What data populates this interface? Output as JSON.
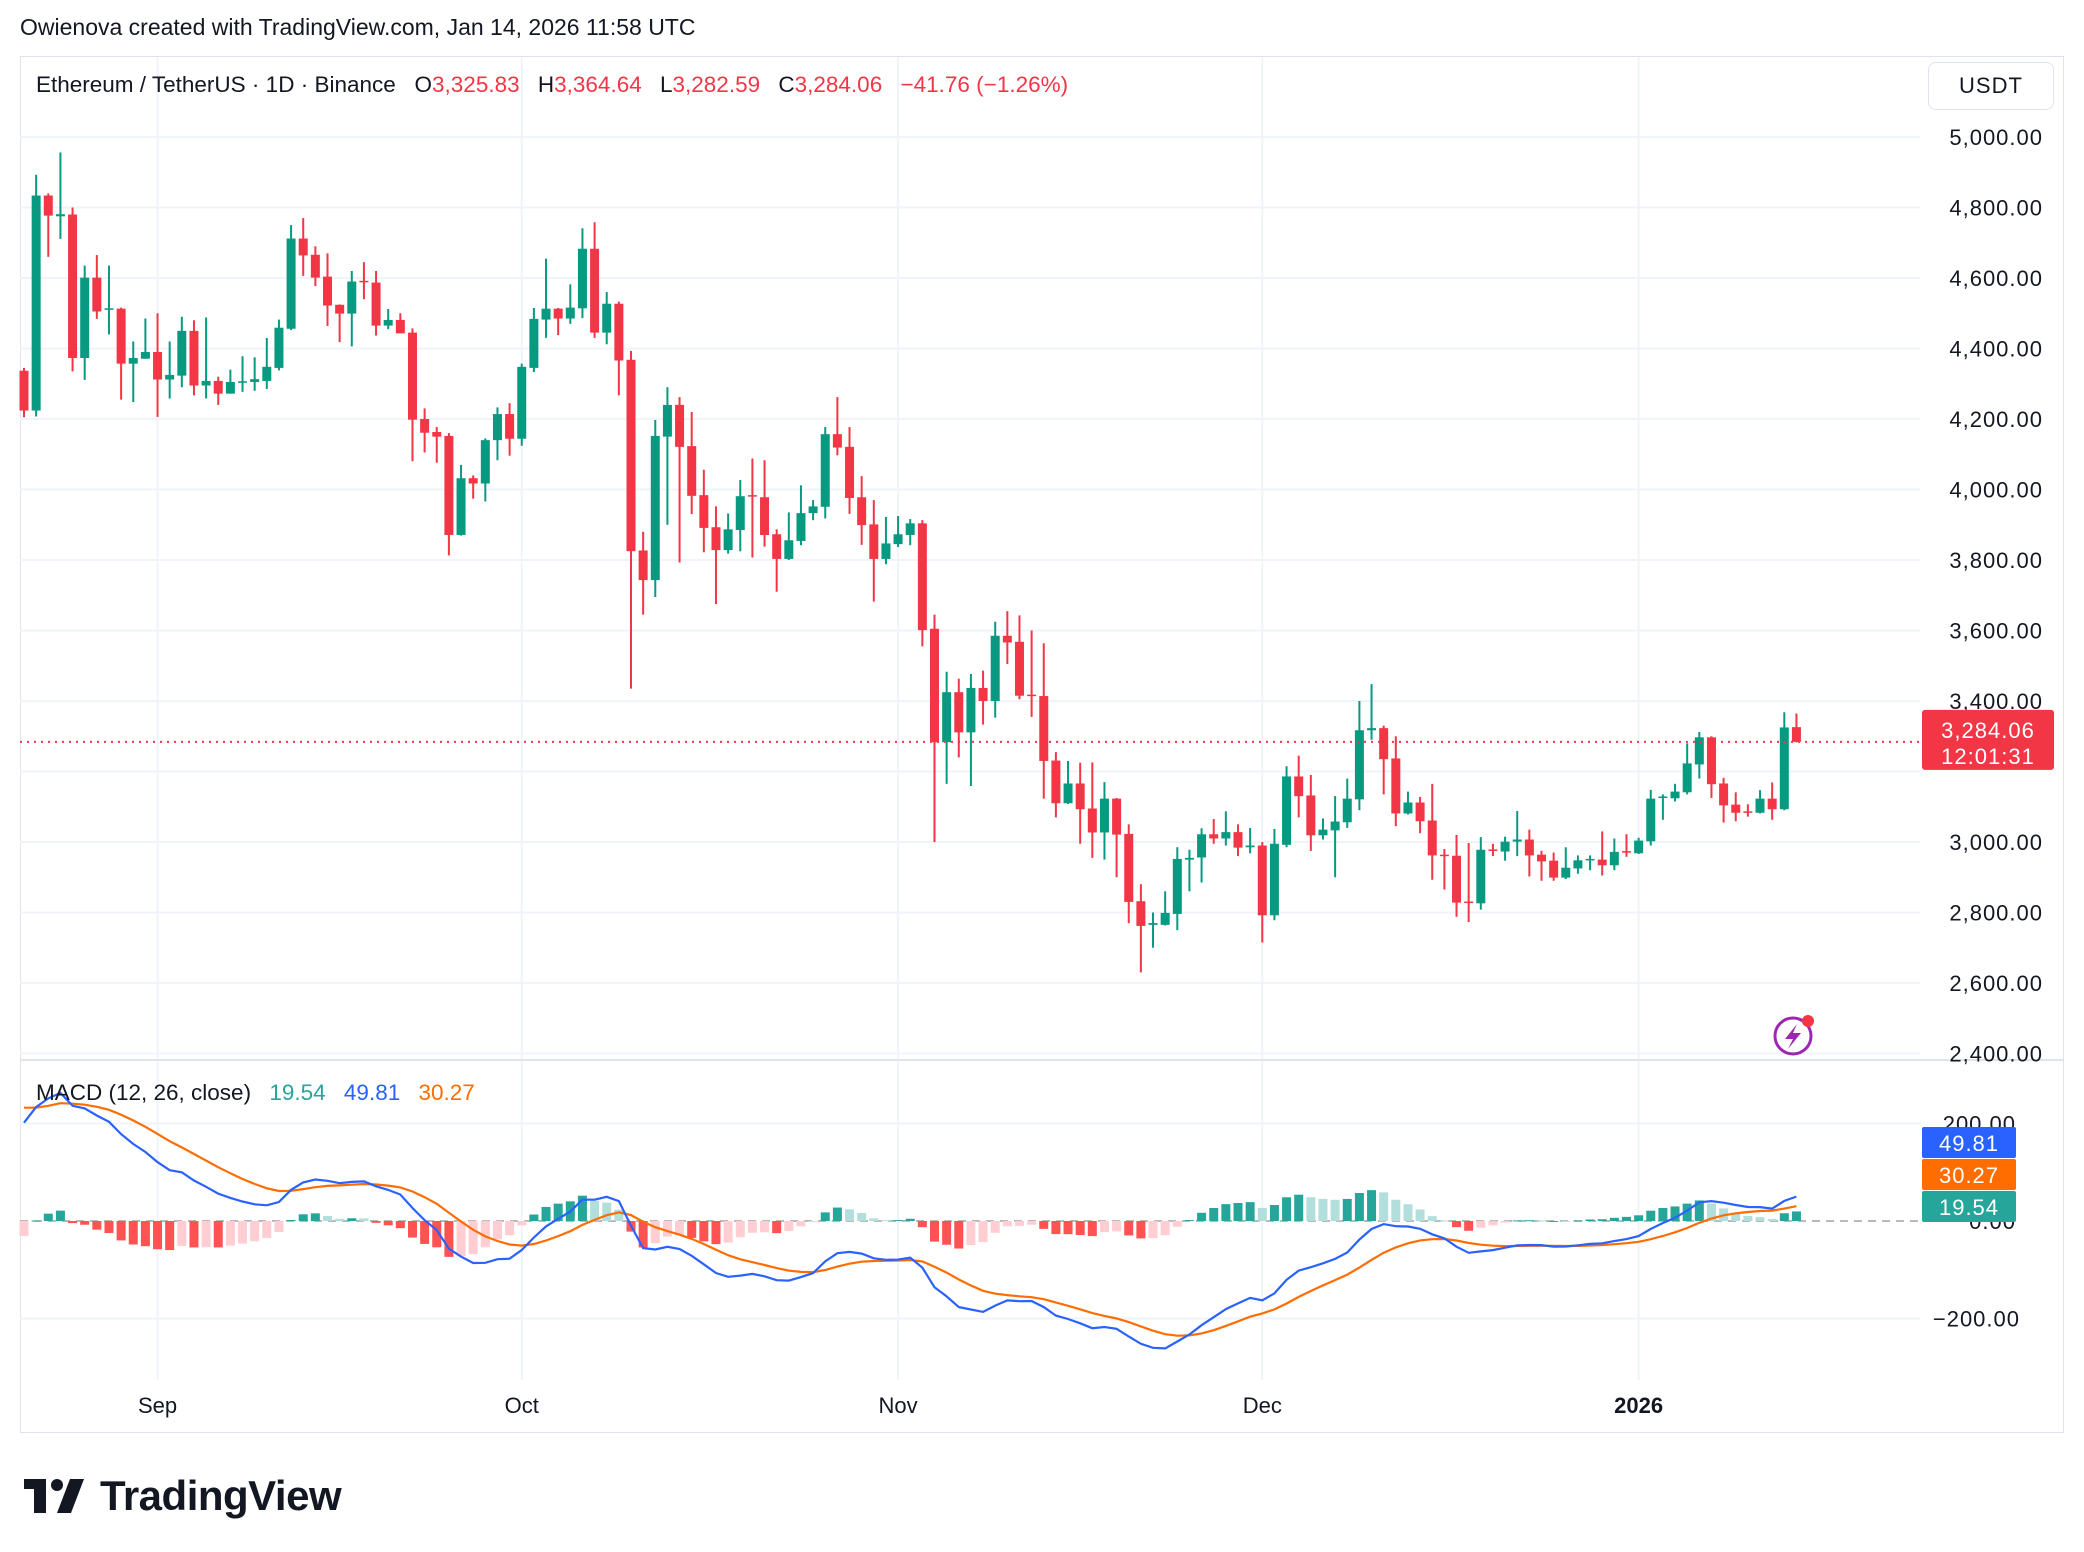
{
  "header": {
    "attribution": "Owienova created with TradingView.com, Jan 14, 2026 11:58 UTC"
  },
  "legend": {
    "symbol": "Ethereum / TetherUS · 1D · Binance",
    "o_label": "O",
    "o": "3,325.83",
    "h_label": "H",
    "h": "3,364.64",
    "l_label": "L",
    "l": "3,282.59",
    "c_label": "C",
    "c": "3,284.06",
    "change": "−41.76 (−1.26%)"
  },
  "price_axis": {
    "currency": "USDT",
    "last_price": "3,284.06",
    "countdown": "12:01:31"
  },
  "macd_legend": {
    "title": "MACD (12, 26, close)",
    "histogram": "19.54",
    "macd": "49.81",
    "signal": "30.27"
  },
  "logo": {
    "text": "TradingView"
  },
  "icons": {
    "alert": "lightning-bolt-icon",
    "logo": "tradingview-logo-icon"
  },
  "colors": {
    "up": "#089981",
    "down": "#F23645",
    "macd": "#2962FF",
    "signal": "#FF6D00",
    "hist_up_strong": "#26A69A",
    "hist_up_weak": "#B2DFDB",
    "hist_down_strong": "#FF5252",
    "hist_down_weak": "#FFCDD2",
    "alert_icon": "#9C27B0"
  },
  "chart_data": {
    "type": "candlestick",
    "interval": "1D",
    "start_date": "2025-08-21",
    "ohlc_order": [
      "open",
      "high",
      "low",
      "close"
    ],
    "ohlc": [
      [
        4337,
        4345,
        4205,
        4224
      ],
      [
        4224,
        4893,
        4207,
        4834
      ],
      [
        4834,
        4840,
        4660,
        4777
      ],
      [
        4775,
        4956,
        4711,
        4781
      ],
      [
        4780,
        4800,
        4335,
        4373
      ],
      [
        4373,
        4635,
        4311,
        4601
      ],
      [
        4601,
        4665,
        4484,
        4505
      ],
      [
        4510,
        4635,
        4440,
        4514
      ],
      [
        4513,
        4516,
        4255,
        4357
      ],
      [
        4357,
        4420,
        4248,
        4373
      ],
      [
        4371,
        4485,
        4371,
        4390
      ],
      [
        4390,
        4500,
        4206,
        4312
      ],
      [
        4312,
        4420,
        4258,
        4325
      ],
      [
        4323,
        4490,
        4290,
        4450
      ],
      [
        4450,
        4480,
        4267,
        4295
      ],
      [
        4295,
        4488,
        4258,
        4308
      ],
      [
        4308,
        4320,
        4240,
        4272
      ],
      [
        4272,
        4340,
        4272,
        4305
      ],
      [
        4305,
        4378,
        4277,
        4307
      ],
      [
        4305,
        4375,
        4280,
        4313
      ],
      [
        4308,
        4430,
        4285,
        4348
      ],
      [
        4345,
        4482,
        4338,
        4459
      ],
      [
        4456,
        4750,
        4452,
        4712
      ],
      [
        4712,
        4770,
        4606,
        4664
      ],
      [
        4666,
        4690,
        4577,
        4601
      ],
      [
        4604,
        4670,
        4464,
        4522
      ],
      [
        4524,
        4525,
        4418,
        4499
      ],
      [
        4499,
        4620,
        4406,
        4590
      ],
      [
        4592,
        4645,
        4540,
        4589
      ],
      [
        4587,
        4620,
        4437,
        4465
      ],
      [
        4465,
        4512,
        4455,
        4481
      ],
      [
        4481,
        4500,
        4443,
        4443
      ],
      [
        4445,
        4457,
        4080,
        4198
      ],
      [
        4200,
        4230,
        4105,
        4161
      ],
      [
        4163,
        4177,
        4076,
        4150
      ],
      [
        4152,
        4160,
        3813,
        3871
      ],
      [
        3871,
        4070,
        3869,
        4032
      ],
      [
        4032,
        4040,
        3974,
        4017
      ],
      [
        4017,
        4145,
        3966,
        4140
      ],
      [
        4140,
        4233,
        4083,
        4214
      ],
      [
        4214,
        4245,
        4096,
        4144
      ],
      [
        4144,
        4357,
        4124,
        4348
      ],
      [
        4345,
        4515,
        4333,
        4484
      ],
      [
        4482,
        4655,
        4430,
        4513
      ],
      [
        4513,
        4515,
        4438,
        4485
      ],
      [
        4485,
        4582,
        4470,
        4516
      ],
      [
        4514,
        4741,
        4486,
        4683
      ],
      [
        4683,
        4758,
        4430,
        4445
      ],
      [
        4445,
        4560,
        4412,
        4527
      ],
      [
        4527,
        4533,
        4267,
        4366
      ],
      [
        4368,
        4393,
        3435,
        3825
      ],
      [
        3827,
        3880,
        3645,
        3743
      ],
      [
        3743,
        4197,
        3695,
        4152
      ],
      [
        4150,
        4290,
        3900,
        4240
      ],
      [
        4240,
        4262,
        3793,
        4121
      ],
      [
        4123,
        4220,
        3930,
        3982
      ],
      [
        3984,
        4056,
        3822,
        3891
      ],
      [
        3893,
        3952,
        3675,
        3828
      ],
      [
        3828,
        3932,
        3818,
        3887
      ],
      [
        3885,
        4027,
        3825,
        3981
      ],
      [
        3984,
        4088,
        3807,
        3981
      ],
      [
        3978,
        4083,
        3838,
        3871
      ],
      [
        3873,
        3887,
        3710,
        3803
      ],
      [
        3803,
        3935,
        3800,
        3856
      ],
      [
        3854,
        4012,
        3842,
        3933
      ],
      [
        3933,
        3970,
        3913,
        3952
      ],
      [
        3951,
        4177,
        3918,
        4157
      ],
      [
        4157,
        4262,
        4097,
        4119
      ],
      [
        4121,
        4177,
        3931,
        3976
      ],
      [
        3978,
        4038,
        3843,
        3899
      ],
      [
        3901,
        3970,
        3682,
        3803
      ],
      [
        3803,
        3922,
        3788,
        3847
      ],
      [
        3845,
        3925,
        3837,
        3873
      ],
      [
        3871,
        3916,
        3842,
        3904
      ],
      [
        3904,
        3913,
        3555,
        3601
      ],
      [
        3605,
        3645,
        3000,
        3283
      ],
      [
        3283,
        3483,
        3165,
        3425
      ],
      [
        3425,
        3463,
        3240,
        3311
      ],
      [
        3311,
        3477,
        3159,
        3437
      ],
      [
        3437,
        3486,
        3333,
        3400
      ],
      [
        3400,
        3625,
        3353,
        3585
      ],
      [
        3585,
        3655,
        3505,
        3566
      ],
      [
        3568,
        3643,
        3405,
        3415
      ],
      [
        3418,
        3600,
        3355,
        3417
      ],
      [
        3414,
        3564,
        3123,
        3230
      ],
      [
        3231,
        3255,
        3070,
        3110
      ],
      [
        3110,
        3230,
        3108,
        3166
      ],
      [
        3166,
        3225,
        2995,
        3093
      ],
      [
        3095,
        3226,
        2955,
        3027
      ],
      [
        3027,
        3170,
        2950,
        3123
      ],
      [
        3123,
        3125,
        2900,
        3021
      ],
      [
        3023,
        3050,
        2770,
        2830
      ],
      [
        2832,
        2880,
        2630,
        2762
      ],
      [
        2765,
        2800,
        2700,
        2770
      ],
      [
        2765,
        2860,
        2763,
        2799
      ],
      [
        2796,
        2985,
        2750,
        2952
      ],
      [
        2950,
        2978,
        2860,
        2955
      ],
      [
        2956,
        3039,
        2885,
        3022
      ],
      [
        3022,
        3065,
        2995,
        3010
      ],
      [
        3010,
        3087,
        2990,
        3028
      ],
      [
        3028,
        3050,
        2960,
        2984
      ],
      [
        2985,
        3040,
        2968,
        2990
      ],
      [
        2990,
        3000,
        2715,
        2792
      ],
      [
        2792,
        3037,
        2778,
        2995
      ],
      [
        2992,
        3215,
        2985,
        3186
      ],
      [
        3186,
        3245,
        3070,
        3130
      ],
      [
        3132,
        3190,
        2975,
        3019
      ],
      [
        3019,
        3067,
        3007,
        3035
      ],
      [
        3033,
        3130,
        2900,
        3058
      ],
      [
        3056,
        3180,
        3040,
        3123
      ],
      [
        3121,
        3400,
        3090,
        3317
      ],
      [
        3317,
        3448,
        3290,
        3323
      ],
      [
        3323,
        3330,
        3135,
        3235
      ],
      [
        3237,
        3300,
        3045,
        3081
      ],
      [
        3081,
        3143,
        3078,
        3112
      ],
      [
        3112,
        3128,
        3025,
        3059
      ],
      [
        3061,
        3165,
        2893,
        2962
      ],
      [
        2964,
        2980,
        2865,
        2963
      ],
      [
        2961,
        3020,
        2788,
        2828
      ],
      [
        2831,
        2997,
        2773,
        2830
      ],
      [
        2826,
        3014,
        2808,
        2978
      ],
      [
        2979,
        2995,
        2960,
        2977
      ],
      [
        2973,
        3015,
        2947,
        3001
      ],
      [
        3001,
        3088,
        2960,
        3007
      ],
      [
        3007,
        3035,
        2902,
        2962
      ],
      [
        2964,
        2975,
        2890,
        2945
      ],
      [
        2947,
        2970,
        2890,
        2899
      ],
      [
        2899,
        2985,
        2895,
        2927
      ],
      [
        2925,
        2962,
        2910,
        2948
      ],
      [
        2950,
        2962,
        2920,
        2952
      ],
      [
        2950,
        3030,
        2905,
        2934
      ],
      [
        2934,
        3010,
        2920,
        2972
      ],
      [
        2974,
        3022,
        2958,
        2972
      ],
      [
        2968,
        3012,
        2966,
        3004
      ],
      [
        3002,
        3148,
        2990,
        3123
      ],
      [
        3126,
        3135,
        3063,
        3129
      ],
      [
        3124,
        3165,
        3115,
        3143
      ],
      [
        3141,
        3280,
        3135,
        3223
      ],
      [
        3220,
        3312,
        3180,
        3297
      ],
      [
        3297,
        3300,
        3125,
        3164
      ],
      [
        3166,
        3182,
        3055,
        3104
      ],
      [
        3106,
        3141,
        3059,
        3083
      ],
      [
        3087,
        3107,
        3072,
        3085
      ],
      [
        3083,
        3147,
        3081,
        3123
      ],
      [
        3123,
        3169,
        3063,
        3093
      ],
      [
        3093,
        3368,
        3090,
        3325
      ],
      [
        3325.83,
        3364.64,
        3282.59,
        3284.06
      ]
    ],
    "last_price": 3284.06,
    "price_range": [
      2400,
      5000
    ],
    "price_ticks": [
      {
        "value": 5000,
        "label": "5,000.00"
      },
      {
        "value": 4800,
        "label": "4,800.00"
      },
      {
        "value": 4600,
        "label": "4,600.00"
      },
      {
        "value": 4400,
        "label": "4,400.00"
      },
      {
        "value": 4200,
        "label": "4,200.00"
      },
      {
        "value": 4000,
        "label": "4,000.00"
      },
      {
        "value": 3800,
        "label": "3,800.00"
      },
      {
        "value": 3600,
        "label": "3,600.00"
      },
      {
        "value": 3400,
        "label": "3,400.00"
      },
      {
        "value": 3000,
        "label": "3,000.00"
      },
      {
        "value": 2800,
        "label": "2,800.00"
      },
      {
        "value": 2600,
        "label": "2,600.00"
      },
      {
        "value": 2400,
        "label": "2,400.00"
      }
    ],
    "time_ticks": [
      {
        "date": "2025-09-01",
        "label": "Sep"
      },
      {
        "date": "2025-10-01",
        "label": "Oct"
      },
      {
        "date": "2025-11-01",
        "label": "Nov"
      },
      {
        "date": "2025-12-01",
        "label": "Dec"
      },
      {
        "date": "2026-01-01",
        "label": "2026",
        "bold": true
      }
    ],
    "grid": true,
    "indicator": {
      "name": "MACD",
      "fast": 12,
      "slow": 26,
      "signal_length": 9,
      "source": "close",
      "last": {
        "histogram": 19.54,
        "macd": 49.81,
        "signal": 30.27
      },
      "range": [
        -260,
        260
      ],
      "ticks": [
        {
          "value": 200,
          "label": "200.00"
        },
        {
          "value": 0,
          "label": "0.00"
        },
        {
          "value": -200,
          "label": "−200.00"
        }
      ]
    }
  }
}
